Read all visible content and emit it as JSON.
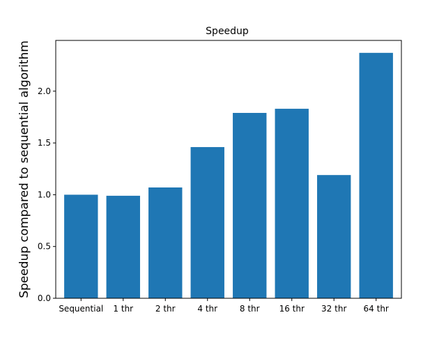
{
  "chart_data": {
    "type": "bar",
    "title": "Speedup",
    "xlabel": "",
    "ylabel": "Speedup compared to sequential algorithm",
    "categories": [
      "Sequential",
      "1 thr",
      "2 thr",
      "4 thr",
      "8 thr",
      "16 thr",
      "32 thr",
      "64 thr"
    ],
    "values": [
      1.0,
      0.99,
      1.07,
      1.46,
      1.79,
      1.83,
      1.19,
      2.37
    ],
    "ylim": [
      0,
      2.49
    ],
    "yticks": [
      0.0,
      0.5,
      1.0,
      1.5,
      2.0
    ],
    "ytick_labels": [
      "0.0",
      "0.5",
      "1.0",
      "1.5",
      "2.0"
    ],
    "bar_color": "#1f77b4",
    "grid": false,
    "legend": "none"
  }
}
